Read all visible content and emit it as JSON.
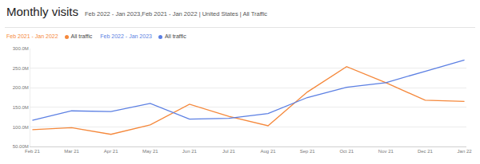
{
  "chart_data": {
    "type": "line",
    "title": "Monthly visits",
    "subtitle": "Feb 2022 - Jan 2023,Feb 2021 - Jan 2022 | United States | All Traffic",
    "categories": [
      "Feb 21",
      "Mar 21",
      "Apr 21",
      "May 21",
      "Jun 21",
      "Jul 21",
      "Aug 21",
      "Sep 21",
      "Oct 21",
      "Nov 21",
      "Dec 21",
      "Jan 22"
    ],
    "series": [
      {
        "name": "All traffic",
        "period": "Feb 2021 - Jan 2022",
        "color": "#f5883b",
        "values": [
          93000000,
          98000000,
          81000000,
          105000000,
          158000000,
          127000000,
          103000000,
          189000000,
          254000000,
          213000000,
          168000000,
          165000000
        ]
      },
      {
        "name": "All traffic",
        "period": "Feb 2022 - Jan 2023",
        "color": "#5b7fe3",
        "values": [
          117000000,
          141000000,
          139000000,
          160000000,
          120000000,
          122000000,
          134000000,
          175000000,
          201000000,
          213000000,
          242000000,
          271000000
        ]
      }
    ],
    "ylim": [
      50000000,
      300000000
    ],
    "yticks": [
      {
        "value": 50000000,
        "label": "50.00M"
      },
      {
        "value": 100000000,
        "label": "100.0M"
      },
      {
        "value": 150000000,
        "label": "150.0M"
      },
      {
        "value": 200000000,
        "label": "200.0M"
      },
      {
        "value": 250000000,
        "label": "250.0M"
      },
      {
        "value": 300000000,
        "label": "300.0M"
      }
    ],
    "grid": true,
    "legend": "top"
  }
}
